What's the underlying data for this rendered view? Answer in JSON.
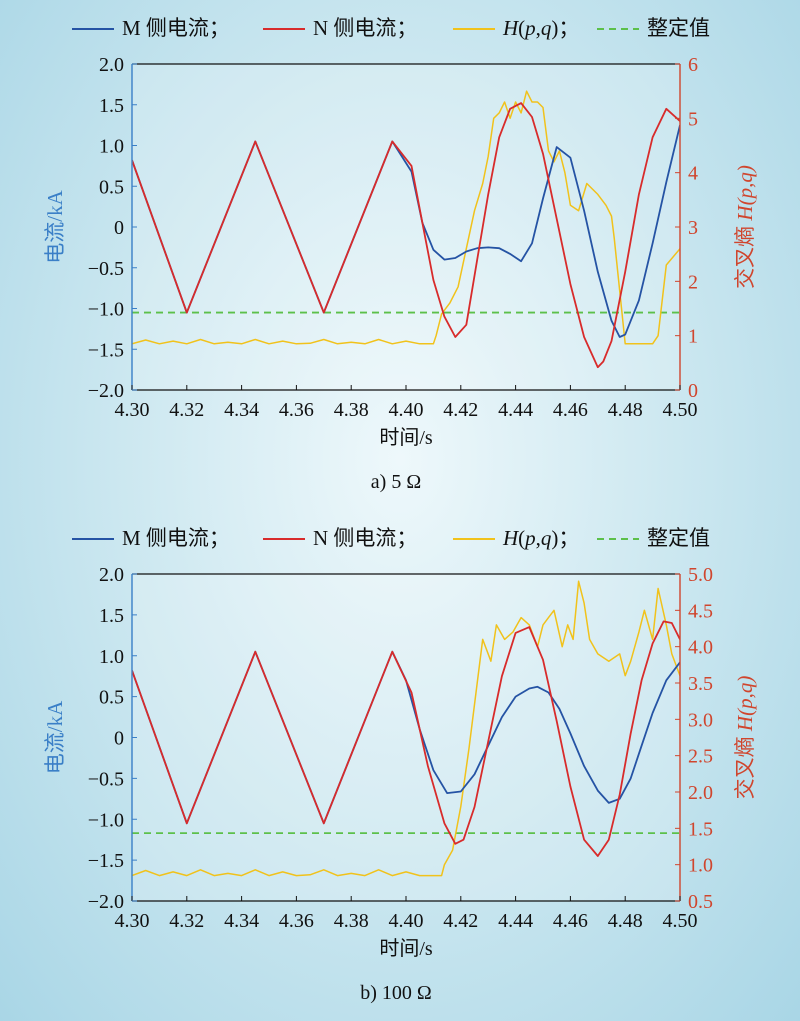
{
  "colors": {
    "m_current": "#2553a4",
    "n_current": "#d82b2b",
    "cross_entropy": "#f1c21b",
    "threshold": "#5cc04a",
    "left_axis": "#3a7fc7",
    "right_axis": "#d0452d"
  },
  "chart_data": [
    {
      "type": "line",
      "caption": "a) 5 Ω",
      "legend": [
        "M 侧电流；",
        "N 侧电流；",
        "H(p,q)；",
        "整定值"
      ],
      "xlabel": "时间/s",
      "ylabel_left": "电流/kA",
      "ylabel_right_prefix": "交叉熵 ",
      "ylabel_right_italic": "H(p,q)",
      "xlim": [
        4.3,
        4.5
      ],
      "ylim_left": [
        -2.0,
        2.0
      ],
      "ylim_right": [
        0,
        6
      ],
      "x_ticks": [
        "4.30",
        "4.32",
        "4.34",
        "4.36",
        "4.38",
        "4.40",
        "4.42",
        "4.44",
        "4.46",
        "4.48",
        "4.50"
      ],
      "y_left_ticks": [
        "2.0",
        "1.5",
        "1.0",
        "0.5",
        "0",
        "−0.5",
        "−1.0",
        "−1.5",
        "−2.0"
      ],
      "y_right_ticks": [
        "6",
        "5",
        "4",
        "3",
        "2",
        "1",
        "0"
      ],
      "threshold_current_kA": -1.05,
      "series": [
        {
          "name": "M 侧电流",
          "axis": "left",
          "x": [
            4.3,
            4.32,
            4.345,
            4.37,
            4.395,
            4.402,
            4.406,
            4.41,
            4.414,
            4.418,
            4.422,
            4.426,
            4.43,
            4.434,
            4.438,
            4.442,
            4.446,
            4.45,
            4.455,
            4.46,
            4.465,
            4.47,
            4.475,
            4.478,
            4.48,
            4.485,
            4.49,
            4.495,
            4.5
          ],
          "y": [
            0.82,
            -1.05,
            1.05,
            -1.05,
            1.05,
            0.68,
            0.05,
            -0.28,
            -0.4,
            -0.38,
            -0.3,
            -0.26,
            -0.25,
            -0.26,
            -0.33,
            -0.42,
            -0.2,
            0.35,
            0.98,
            0.85,
            0.2,
            -0.55,
            -1.15,
            -1.35,
            -1.32,
            -0.9,
            -0.2,
            0.55,
            1.25
          ]
        },
        {
          "name": "N 侧电流",
          "axis": "left",
          "x": [
            4.3,
            4.32,
            4.345,
            4.37,
            4.395,
            4.402,
            4.406,
            4.41,
            4.414,
            4.418,
            4.422,
            4.426,
            4.43,
            4.434,
            4.438,
            4.442,
            4.446,
            4.45,
            4.455,
            4.46,
            4.465,
            4.47,
            4.472,
            4.475,
            4.48,
            4.485,
            4.49,
            4.495,
            4.5
          ],
          "y": [
            0.82,
            -1.05,
            1.05,
            -1.05,
            1.05,
            0.75,
            0.05,
            -0.65,
            -1.1,
            -1.35,
            -1.2,
            -0.4,
            0.4,
            1.1,
            1.45,
            1.52,
            1.35,
            0.9,
            0.1,
            -0.7,
            -1.35,
            -1.72,
            -1.65,
            -1.4,
            -0.55,
            0.4,
            1.1,
            1.45,
            1.3
          ]
        },
        {
          "name": "H(p,q)",
          "axis": "right",
          "x": [
            4.3,
            4.305,
            4.31,
            4.315,
            4.32,
            4.325,
            4.33,
            4.335,
            4.34,
            4.345,
            4.35,
            4.355,
            4.36,
            4.365,
            4.37,
            4.375,
            4.38,
            4.385,
            4.39,
            4.395,
            4.4,
            4.405,
            4.41,
            4.411,
            4.413,
            4.416,
            4.419,
            4.422,
            4.425,
            4.428,
            4.43,
            4.432,
            4.434,
            4.436,
            4.438,
            4.44,
            4.442,
            4.444,
            4.446,
            4.448,
            4.45,
            4.452,
            4.454,
            4.456,
            4.458,
            4.46,
            4.463,
            4.466,
            4.47,
            4.473,
            4.475,
            4.476,
            4.48,
            4.485,
            4.49,
            4.492,
            4.495,
            4.5
          ],
          "y": [
            0.85,
            0.92,
            0.85,
            0.9,
            0.85,
            0.93,
            0.85,
            0.88,
            0.85,
            0.93,
            0.85,
            0.9,
            0.85,
            0.86,
            0.93,
            0.85,
            0.88,
            0.85,
            0.93,
            0.85,
            0.9,
            0.85,
            0.85,
            1.0,
            1.4,
            1.6,
            1.9,
            2.6,
            3.3,
            3.8,
            4.3,
            5.0,
            5.1,
            5.3,
            5.0,
            5.3,
            5.1,
            5.5,
            5.3,
            5.3,
            5.2,
            4.4,
            4.2,
            4.4,
            4.0,
            3.4,
            3.3,
            3.8,
            3.6,
            3.4,
            3.2,
            2.8,
            0.85,
            0.85,
            0.85,
            1.0,
            2.3,
            2.6
          ]
        }
      ]
    },
    {
      "type": "line",
      "caption": "b) 100 Ω",
      "legend": [
        "M 侧电流；",
        "N 侧电流；",
        "H(p,q)；",
        "整定值"
      ],
      "xlabel": "时间/s",
      "ylabel_left": "电流/kA",
      "ylabel_right_prefix": "交叉熵 ",
      "ylabel_right_italic": "H(p,q)",
      "xlim": [
        4.3,
        4.5
      ],
      "ylim_left": [
        -2.0,
        2.0
      ],
      "ylim_right": [
        0.5,
        5.0
      ],
      "x_ticks": [
        "4.30",
        "4.32",
        "4.34",
        "4.36",
        "4.38",
        "4.40",
        "4.42",
        "4.44",
        "4.46",
        "4.48",
        "4.50"
      ],
      "y_left_ticks": [
        "2.0",
        "1.5",
        "1.0",
        "0.5",
        "0",
        "−0.5",
        "−1.0",
        "−1.5",
        "−2.0"
      ],
      "y_right_ticks": [
        "5.0",
        "4.5",
        "4.0",
        "3.5",
        "3.0",
        "2.5",
        "2.0",
        "1.5",
        "1.0",
        "0.5"
      ],
      "threshold_current_kA": -1.17,
      "series": [
        {
          "name": "M 侧电流",
          "axis": "left",
          "x": [
            4.3,
            4.32,
            4.345,
            4.37,
            4.395,
            4.4,
            4.405,
            4.41,
            4.415,
            4.42,
            4.425,
            4.43,
            4.435,
            4.44,
            4.445,
            4.448,
            4.452,
            4.456,
            4.46,
            4.465,
            4.47,
            4.474,
            4.478,
            4.482,
            4.486,
            4.49,
            4.495,
            4.5
          ],
          "y": [
            0.82,
            -1.05,
            1.05,
            -1.05,
            1.05,
            0.7,
            0.1,
            -0.4,
            -0.68,
            -0.66,
            -0.45,
            -0.1,
            0.25,
            0.5,
            0.6,
            0.62,
            0.55,
            0.35,
            0.05,
            -0.35,
            -0.65,
            -0.8,
            -0.75,
            -0.5,
            -0.1,
            0.3,
            0.7,
            0.92
          ]
        },
        {
          "name": "N 侧电流",
          "axis": "left",
          "x": [
            4.3,
            4.32,
            4.345,
            4.37,
            4.395,
            4.402,
            4.408,
            4.414,
            4.418,
            4.421,
            4.425,
            4.43,
            4.435,
            4.44,
            4.445,
            4.45,
            4.455,
            4.46,
            4.465,
            4.47,
            4.474,
            4.478,
            4.482,
            4.486,
            4.49,
            4.494,
            4.497,
            4.5
          ],
          "y": [
            0.82,
            -1.05,
            1.05,
            -1.05,
            1.05,
            0.55,
            -0.35,
            -1.05,
            -1.3,
            -1.25,
            -0.85,
            -0.05,
            0.75,
            1.28,
            1.35,
            0.95,
            0.2,
            -0.6,
            -1.25,
            -1.45,
            -1.25,
            -0.7,
            0.05,
            0.7,
            1.15,
            1.42,
            1.4,
            1.2
          ]
        },
        {
          "name": "H(p,q)",
          "axis": "right",
          "x": [
            4.3,
            4.305,
            4.31,
            4.315,
            4.32,
            4.325,
            4.33,
            4.335,
            4.34,
            4.345,
            4.35,
            4.355,
            4.36,
            4.365,
            4.37,
            4.375,
            4.38,
            4.385,
            4.39,
            4.395,
            4.4,
            4.405,
            4.41,
            4.413,
            4.414,
            4.417,
            4.42,
            4.423,
            4.426,
            4.428,
            4.431,
            4.433,
            4.436,
            4.439,
            4.442,
            4.445,
            4.448,
            4.45,
            4.452,
            4.454,
            4.457,
            4.459,
            4.461,
            4.463,
            4.465,
            4.467,
            4.47,
            4.474,
            4.478,
            4.48,
            4.482,
            4.485,
            4.487,
            4.49,
            4.492,
            4.495,
            4.497,
            4.5
          ],
          "y": [
            0.85,
            0.92,
            0.85,
            0.9,
            0.85,
            0.93,
            0.85,
            0.88,
            0.85,
            0.93,
            0.85,
            0.9,
            0.85,
            0.86,
            0.93,
            0.85,
            0.88,
            0.85,
            0.93,
            0.85,
            0.9,
            0.85,
            0.85,
            0.85,
            1.0,
            1.2,
            1.8,
            2.6,
            3.5,
            4.1,
            3.8,
            4.3,
            4.1,
            4.2,
            4.4,
            4.3,
            4.0,
            4.3,
            4.4,
            4.5,
            4.0,
            4.3,
            4.1,
            4.9,
            4.6,
            4.1,
            3.9,
            3.8,
            3.9,
            3.6,
            3.8,
            4.2,
            4.5,
            4.1,
            4.8,
            4.3,
            3.9,
            3.6
          ]
        }
      ]
    }
  ]
}
